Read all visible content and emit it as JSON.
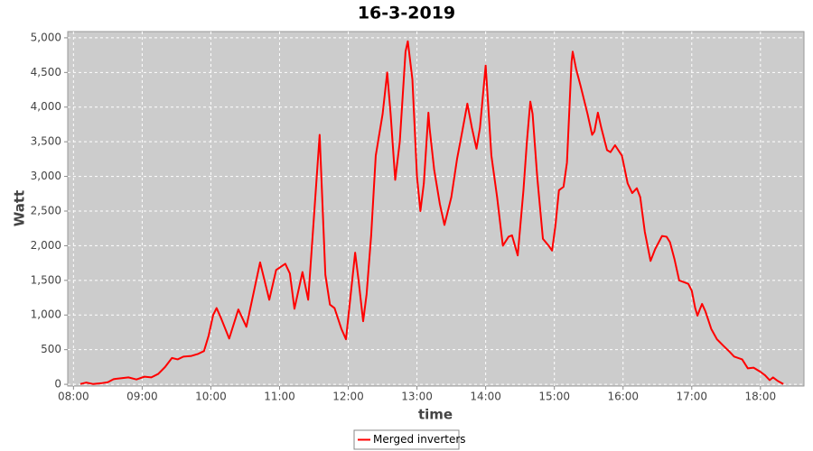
{
  "chart_data": {
    "type": "line",
    "title": "16-3-2019",
    "x_label": "time",
    "y_label": "Watt",
    "x": [
      "08:06",
      "08:11",
      "08:17",
      "08:24",
      "08:30",
      "08:35",
      "08:43",
      "08:48",
      "08:55",
      "09:02",
      "09:08",
      "09:14",
      "09:20",
      "09:26",
      "09:31",
      "09:36",
      "09:43",
      "09:49",
      "09:54",
      "09:58",
      "10:02",
      "10:05",
      "10:09",
      "10:16",
      "10:24",
      "10:31",
      "10:43",
      "10:51",
      "10:57",
      "11:05",
      "11:09",
      "11:13",
      "11:20",
      "11:25",
      "11:35",
      "11:40",
      "11:44",
      "11:48",
      "11:54",
      "11:58",
      "12:06",
      "12:09",
      "12:13",
      "12:16",
      "12:20",
      "12:24",
      "12:30",
      "12:34",
      "12:37",
      "12:41",
      "12:45",
      "12:50",
      "12:52",
      "12:56",
      "13:00",
      "13:03",
      "13:06",
      "13:10",
      "13:11",
      "13:15",
      "13:20",
      "13:24",
      "13:30",
      "13:35",
      "13:39",
      "13:44",
      "13:48",
      "13:52",
      "13:55",
      "14:00",
      "14:05",
      "14:10",
      "14:15",
      "14:20",
      "14:23",
      "14:28",
      "14:33",
      "14:36",
      "14:39",
      "14:41",
      "14:45",
      "14:50",
      "14:55",
      "14:58",
      "15:01",
      "15:04",
      "15:08",
      "15:11",
      "15:15",
      "15:16",
      "15:19",
      "15:23",
      "15:29",
      "15:33",
      "15:35",
      "15:38",
      "15:41",
      "15:46",
      "15:49",
      "15:53",
      "15:59",
      "16:04",
      "16:08",
      "16:12",
      "16:15",
      "16:19",
      "16:24",
      "16:28",
      "16:34",
      "16:38",
      "16:41",
      "16:45",
      "16:49",
      "16:57",
      "17:00",
      "17:03",
      "17:05",
      "17:07",
      "17:09",
      "17:12",
      "17:17",
      "17:22",
      "17:28",
      "17:33",
      "17:37",
      "17:44",
      "17:49",
      "17:54",
      "18:00",
      "18:04",
      "18:08",
      "18:11",
      "18:15",
      "18:20"
    ],
    "series": [
      {
        "name": "Merged inverters",
        "color": "#ff0000",
        "values": [
          5,
          25,
          5,
          15,
          30,
          75,
          90,
          100,
          70,
          110,
          100,
          150,
          250,
          380,
          360,
          400,
          410,
          440,
          480,
          700,
          1000,
          1100,
          950,
          660,
          1080,
          830,
          1760,
          1220,
          1650,
          1740,
          1600,
          1090,
          1620,
          1220,
          3600,
          1580,
          1150,
          1100,
          800,
          650,
          1900,
          1500,
          910,
          1300,
          2150,
          3300,
          3900,
          4500,
          3900,
          2950,
          3500,
          4800,
          4950,
          4400,
          3000,
          2500,
          2900,
          3920,
          3700,
          3100,
          2600,
          2300,
          2700,
          3250,
          3600,
          4050,
          3700,
          3400,
          3700,
          4600,
          3300,
          2700,
          2000,
          2130,
          2150,
          1860,
          2800,
          3500,
          4080,
          3900,
          3000,
          2100,
          2000,
          1930,
          2300,
          2800,
          2850,
          3200,
          4650,
          4800,
          4550,
          4300,
          3900,
          3600,
          3650,
          3920,
          3700,
          3380,
          3350,
          3450,
          3300,
          2900,
          2760,
          2830,
          2700,
          2200,
          1780,
          1950,
          2140,
          2130,
          2050,
          1800,
          1500,
          1450,
          1350,
          1100,
          990,
          1080,
          1160,
          1050,
          800,
          650,
          550,
          470,
          400,
          360,
          230,
          240,
          180,
          130,
          60,
          100,
          50,
          5
        ]
      }
    ],
    "xlim": [
      "07:55",
      "18:38"
    ],
    "xticks": [
      "08:00",
      "09:00",
      "10:00",
      "11:00",
      "12:00",
      "13:00",
      "14:00",
      "15:00",
      "16:00",
      "17:00",
      "18:00"
    ],
    "ylim": [
      -25,
      5090
    ],
    "yticks": [
      0,
      500,
      {
        "value": 1000,
        "label": "1,000"
      },
      {
        "value": 1500,
        "label": "1,500"
      },
      {
        "value": 2000,
        "label": "2,000"
      },
      {
        "value": 2500,
        "label": "2,500"
      },
      {
        "value": 3000,
        "label": "3,000"
      },
      {
        "value": 3500,
        "label": "3,500"
      },
      {
        "value": 4000,
        "label": "4,000"
      },
      {
        "value": 4500,
        "label": "4,500"
      },
      {
        "value": 5000,
        "label": "5,000"
      }
    ],
    "grid": true,
    "legend": "bottom"
  }
}
